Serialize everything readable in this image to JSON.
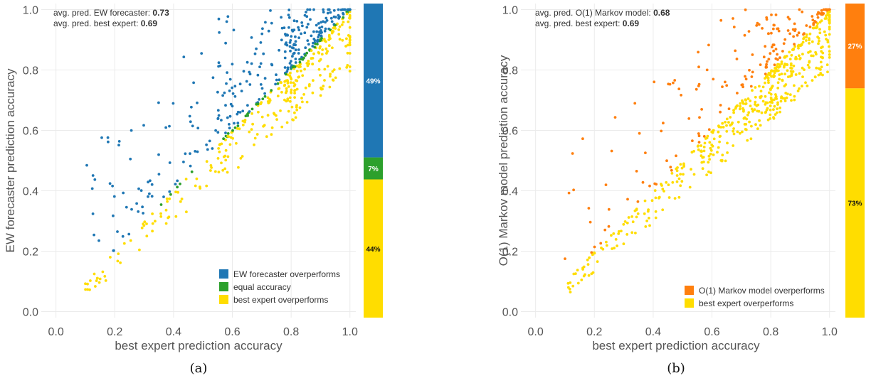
{
  "chart_data": [
    {
      "type": "scatter",
      "panel_label": "(a)",
      "xlabel": "best expert prediction accuracy",
      "ylabel": "EW forecaster prediction accuracy",
      "xlim": [
        -0.05,
        1.02
      ],
      "ylim": [
        -0.02,
        1.02
      ],
      "xticks": [
        "0.0",
        "0.2",
        "0.4",
        "0.6",
        "0.8",
        "1.0"
      ],
      "yticks": [
        "0.0",
        "0.2",
        "0.4",
        "0.6",
        "0.8",
        "1.0"
      ],
      "grid": true,
      "annotations": [
        {
          "text": "avg. pred. EW forecaster: ",
          "value": "0.73"
        },
        {
          "text": "avg. pred. best expert: ",
          "value": "0.69"
        }
      ],
      "legend_position": "bottom-right",
      "series": [
        {
          "name": "EW forecaster overperforms",
          "color": "#1f77b4",
          "fraction": 0.49,
          "pct_label": "49%",
          "rule": "above"
        },
        {
          "name": "equal accuracy",
          "color": "#2ca02c",
          "fraction": 0.07,
          "pct_label": "7%",
          "rule": "equal"
        },
        {
          "name": "best expert overperforms",
          "color": "#ffdd00",
          "fraction": 0.44,
          "pct_label": "44%",
          "rule": "below"
        }
      ],
      "point_count": 650,
      "seed": 11
    },
    {
      "type": "scatter",
      "panel_label": "(b)",
      "xlabel": "best expert prediction accuracy",
      "ylabel": "O(1) Markov model prediction accuracy",
      "xlim": [
        -0.05,
        1.02
      ],
      "ylim": [
        -0.02,
        1.02
      ],
      "xticks": [
        "0.0",
        "0.2",
        "0.4",
        "0.6",
        "0.8",
        "1.0"
      ],
      "yticks": [
        "0.0",
        "0.2",
        "0.4",
        "0.6",
        "0.8",
        "1.0"
      ],
      "grid": true,
      "annotations": [
        {
          "text": "avg. pred. O(1) Markov model: ",
          "value": "0.68"
        },
        {
          "text": "avg. pred. best expert: ",
          "value": "0.69"
        }
      ],
      "legend_position": "bottom-right",
      "series": [
        {
          "name": "O(1) Markov model overperforms",
          "color": "#ff7f0e",
          "fraction": 0.27,
          "pct_label": "27%",
          "rule": "above"
        },
        {
          "name": "best expert overperforms",
          "color": "#ffdd00",
          "fraction": 0.73,
          "pct_label": "73%",
          "rule": "below"
        }
      ],
      "point_count": 650,
      "seed": 29
    }
  ]
}
